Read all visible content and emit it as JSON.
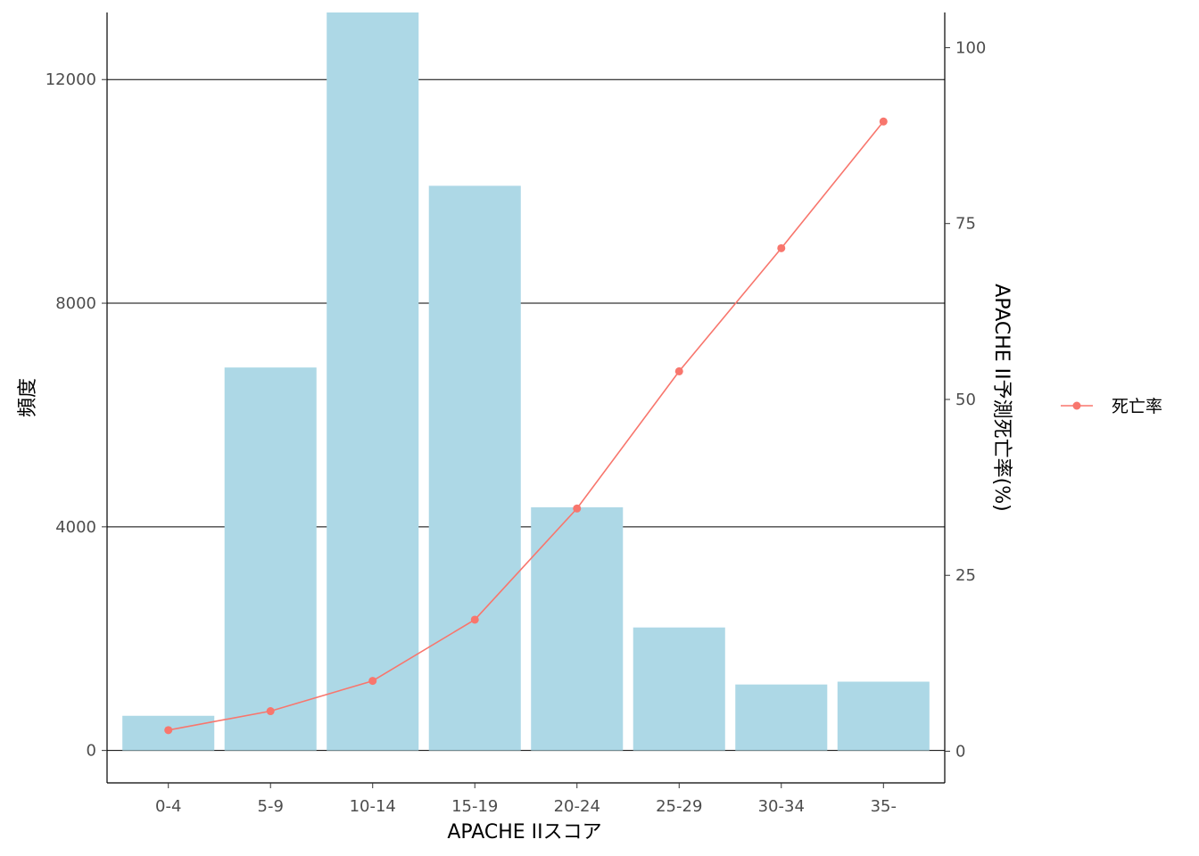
{
  "chart_data": {
    "type": "bar",
    "categories": [
      "0-4",
      "5-9",
      "10-14",
      "15-19",
      "20-24",
      "25-29",
      "30-34",
      "35-"
    ],
    "values": [
      620,
      6850,
      13200,
      10100,
      4350,
      2200,
      1180,
      1230
    ],
    "xlabel": "APACHE IIスコア",
    "ylabel": "頻度",
    "ylim": [
      -580,
      13200
    ],
    "yticks": [
      0,
      4000,
      8000,
      12000
    ],
    "y2label": "APACHE II予測死亡率(%)",
    "y2lim": [
      -4.5,
      105
    ],
    "y2ticks": [
      0,
      25,
      50,
      75,
      100
    ],
    "grid": "horizontal-major",
    "legend_position": "right",
    "series": [
      {
        "name": "死亡率",
        "type": "line",
        "axis": "right",
        "values": [
          3.0,
          5.7,
          10.0,
          18.7,
          34.5,
          54.0,
          71.5,
          89.5
        ]
      }
    ],
    "colors": {
      "bar": "#add8e6",
      "line": "#f8766d",
      "grid": "#000000",
      "axis": "#000000"
    }
  }
}
